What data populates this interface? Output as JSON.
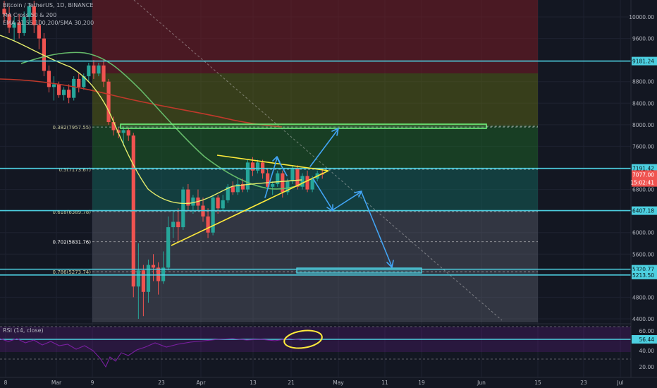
{
  "header": {
    "symbol_line": "Bitcoin / TetherUS, 1D, BINANCE",
    "indicator_1": "MA Cross 50 & 200",
    "indicator_2": "EMA 21,55,100,200/SMA 30,200"
  },
  "rsi_label": "RSI (14, close)",
  "colors": {
    "background": "#131722",
    "up": "#26a69a",
    "down": "#ef5350",
    "cyan": "#4dd0e1",
    "yellow": "#ffeb3b",
    "green_ma": "#66bb6a",
    "red_ma": "#c0392b",
    "blue_arrow": "#42a5f5",
    "rsi_line": "#7b1fa2"
  },
  "chart_data": {
    "type": "candlestick",
    "y_axis": {
      "range": [
        4300,
        10400
      ],
      "ticks": [
        "10000.00",
        "9600.00",
        "8800.00",
        "8400.00",
        "8000.00",
        "7600.00",
        "6800.00",
        "6000.00",
        "5600.00",
        "4800.00",
        "4400.00"
      ]
    },
    "x_axis": {
      "ticks": [
        "8",
        "Mar",
        "9",
        "23",
        "Apr",
        "13",
        "21",
        "May",
        "11",
        "19",
        "Jun",
        "15",
        "23",
        "Jul"
      ]
    },
    "price_tags": [
      {
        "label": "9181.24",
        "value": 9181.24,
        "color": "#4dd0e1"
      },
      {
        "label": "7191.42",
        "value": 7191.42,
        "color": "#4dd0e1"
      },
      {
        "label": "7077.00",
        "value": 7077.0,
        "color": "#ef5350"
      },
      {
        "label": "15:02:41",
        "value": 6930,
        "color": "#ef5350"
      },
      {
        "label": "6407.18",
        "value": 6407.18,
        "color": "#4dd0e1"
      },
      {
        "label": "5320.77",
        "value": 5320.77,
        "color": "#4dd0e1"
      },
      {
        "label": "5213.50",
        "value": 5213.5,
        "color": "#4dd0e1"
      }
    ],
    "fib_levels": [
      {
        "label": "0.382(7957.55)",
        "value": 7957.55
      },
      {
        "label": "0.5(7173.67)",
        "value": 7173.67
      },
      {
        "label": "0.618(6389.78)",
        "value": 6389.78
      },
      {
        "label": "0.702(5831.76)",
        "value": 5831.76
      },
      {
        "label": "0.786(5273.74)",
        "value": 5273.74
      }
    ],
    "horizontal_levels": [
      9181.24,
      7191.42,
      6407.18,
      5320.77,
      5213.5
    ],
    "candles": [
      [
        10150,
        10300,
        9900,
        10050
      ],
      [
        10050,
        10200,
        9700,
        9800
      ],
      [
        9800,
        10000,
        9550,
        9900
      ],
      [
        9900,
        10050,
        9600,
        9700
      ],
      [
        9700,
        10100,
        9650,
        10000
      ],
      [
        10000,
        10250,
        9850,
        10200
      ],
      [
        10200,
        10300,
        9700,
        9850
      ],
      [
        9850,
        9950,
        9400,
        9600
      ],
      [
        9600,
        9700,
        8900,
        9000
      ],
      [
        9000,
        9100,
        8600,
        8700
      ],
      [
        8700,
        8900,
        8450,
        8750
      ],
      [
        8750,
        8800,
        8500,
        8550
      ],
      [
        8550,
        8700,
        8450,
        8650
      ],
      [
        8650,
        8750,
        8400,
        8500
      ],
      [
        8500,
        8900,
        8450,
        8850
      ],
      [
        8850,
        8950,
        8600,
        8700
      ],
      [
        8700,
        8950,
        8650,
        8900
      ],
      [
        8900,
        9150,
        8800,
        9100
      ],
      [
        9100,
        9200,
        8850,
        8950
      ],
      [
        8950,
        9150,
        8900,
        9100
      ],
      [
        9100,
        9200,
        8700,
        8800
      ],
      [
        8800,
        8850,
        8000,
        8050
      ],
      [
        8050,
        8150,
        7800,
        7900
      ],
      [
        7900,
        7950,
        7750,
        7850
      ],
      [
        7850,
        7950,
        7600,
        7900
      ],
      [
        7900,
        7950,
        7700,
        7800
      ],
      [
        7800,
        7850,
        4800,
        5000
      ],
      [
        5000,
        5800,
        4400,
        5300
      ],
      [
        5300,
        5400,
        4450,
        4900
      ],
      [
        4900,
        5500,
        4700,
        5400
      ],
      [
        5400,
        5600,
        5100,
        5350
      ],
      [
        5350,
        5450,
        4850,
        5100
      ],
      [
        5100,
        5650,
        5050,
        5350
      ],
      [
        5350,
        6300,
        5300,
        6100
      ],
      [
        6100,
        6400,
        5900,
        6200
      ],
      [
        6200,
        6450,
        5850,
        6100
      ],
      [
        6100,
        6850,
        6050,
        6800
      ],
      [
        6800,
        6900,
        6400,
        6500
      ],
      [
        6500,
        6700,
        6350,
        6650
      ],
      [
        6650,
        6800,
        6400,
        6500
      ],
      [
        6500,
        6650,
        6200,
        6300
      ],
      [
        6300,
        6450,
        5900,
        6000
      ],
      [
        6000,
        6700,
        5950,
        6650
      ],
      [
        6650,
        6700,
        6350,
        6450
      ],
      [
        6450,
        6700,
        6400,
        6600
      ],
      [
        6600,
        6900,
        6550,
        6850
      ],
      [
        6850,
        6950,
        6700,
        6750
      ],
      [
        6750,
        7000,
        6700,
        6900
      ],
      [
        6900,
        7000,
        6750,
        6800
      ],
      [
        6800,
        7350,
        6750,
        7300
      ],
      [
        7300,
        7400,
        7050,
        7150
      ],
      [
        7150,
        7350,
        7100,
        7300
      ],
      [
        7300,
        7350,
        7000,
        7100
      ],
      [
        7100,
        7200,
        6800,
        6850
      ],
      [
        6850,
        6950,
        6700,
        6900
      ],
      [
        6900,
        7150,
        6850,
        7100
      ],
      [
        7100,
        7150,
        6650,
        6750
      ],
      [
        6750,
        7000,
        6700,
        6950
      ],
      [
        6950,
        7250,
        6900,
        7200
      ],
      [
        7200,
        7250,
        6800,
        6850
      ],
      [
        6850,
        7100,
        6800,
        7050
      ],
      [
        7050,
        7150,
        6750,
        6800
      ],
      [
        6800,
        7050,
        6750,
        7000
      ],
      [
        7000,
        7150,
        6950,
        7100
      ],
      [
        7100,
        7200,
        7000,
        7077
      ]
    ]
  }
}
